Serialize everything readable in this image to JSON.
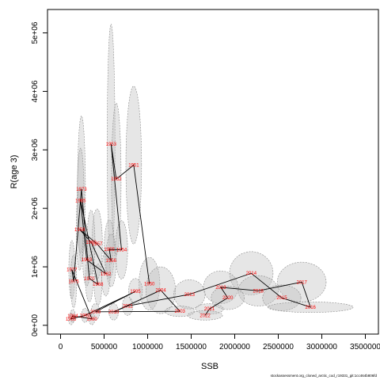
{
  "chart_data": {
    "type": "scatter",
    "title": "",
    "xlabel": "SSB",
    "ylabel": "R(age 3)",
    "xlim": [
      -150000,
      3650000
    ],
    "ylim": [
      -150000,
      5400000
    ],
    "x_ticks": [
      0,
      500000,
      1000000,
      1500000,
      2000000,
      2500000,
      3000000,
      3500000
    ],
    "x_tick_labels": [
      "0",
      "500000",
      "1000000",
      "1500000",
      "2000000",
      "2500000",
      "3000000",
      "3500000"
    ],
    "y_ticks": [
      0,
      1000000,
      2000000,
      3000000,
      4000000,
      5000000
    ],
    "y_tick_labels": [
      "0e+00",
      "1e+06",
      "2e+06",
      "3e+06",
      "4e+06",
      "5e+06"
    ],
    "grid": false,
    "legend": "none",
    "colors": {
      "label": "#ff0000",
      "ellipse_fill": "#bdbdbd",
      "ellipse_stroke": "#8c8c8c",
      "line": "#000000"
    },
    "points": [
      {
        "year": "1953",
        "x": 580000,
        "y": 3100000,
        "rx": 45000,
        "ry": 2050000
      },
      {
        "year": "1951",
        "x": 840000,
        "y": 2740000,
        "rx": 90000,
        "ry": 1350000
      },
      {
        "year": "1952",
        "x": 640000,
        "y": 2500000,
        "rx": 55000,
        "ry": 1300000
      },
      {
        "year": "1973",
        "x": 240000,
        "y": 2330000,
        "rx": 45000,
        "ry": 1250000
      },
      {
        "year": "1965",
        "x": 230000,
        "y": 2130000,
        "rx": 40000,
        "ry": 900000
      },
      {
        "year": "1958",
        "x": 220000,
        "y": 1640000,
        "rx": 40000,
        "ry": 700000
      },
      {
        "year": "1957",
        "x": 420000,
        "y": 1390000,
        "rx": 60000,
        "ry": 600000
      },
      {
        "year": "1955",
        "x": 560000,
        "y": 1300000,
        "rx": 60000,
        "ry": 500000
      },
      {
        "year": "1954",
        "x": 700000,
        "y": 1290000,
        "rx": 70000,
        "ry": 500000
      },
      {
        "year": "1956",
        "x": 580000,
        "y": 1110000,
        "rx": 60000,
        "ry": 450000
      },
      {
        "year": "1950",
        "x": 1020000,
        "y": 710000,
        "rx": 120000,
        "ry": 450000
      },
      {
        "year": "2004",
        "x": 1150000,
        "y": 600000,
        "rx": 170000,
        "ry": 400000
      },
      {
        "year": "2014",
        "x": 2190000,
        "y": 890000,
        "rx": 250000,
        "ry": 370000
      },
      {
        "year": "2017",
        "x": 2770000,
        "y": 740000,
        "rx": 280000,
        "ry": 340000
      },
      {
        "year": "2019",
        "x": 1840000,
        "y": 650000,
        "rx": 200000,
        "ry": 280000
      },
      {
        "year": "2018",
        "x": 2270000,
        "y": 590000,
        "rx": 230000,
        "ry": 260000
      },
      {
        "year": "2015",
        "x": 2540000,
        "y": 470000,
        "rx": 220000,
        "ry": 220000
      },
      {
        "year": "2013",
        "x": 1480000,
        "y": 530000,
        "rx": 180000,
        "ry": 250000
      },
      {
        "year": "2020",
        "x": 1920000,
        "y": 470000,
        "rx": 190000,
        "ry": 200000
      },
      {
        "year": "2016",
        "x": 2870000,
        "y": 310000,
        "rx": 490000,
        "ry": 90000
      },
      {
        "year": "2021",
        "x": 1710000,
        "y": 280000,
        "rx": 160000,
        "ry": 90000
      },
      {
        "year": "2003",
        "x": 1370000,
        "y": 240000,
        "rx": 170000,
        "ry": 90000
      },
      {
        "year": "2022",
        "x": 1660000,
        "y": 170000,
        "rx": 200000,
        "ry": 80000
      },
      {
        "year": "1995",
        "x": 860000,
        "y": 580000,
        "rx": 80000,
        "ry": 220000
      },
      {
        "year": "2011",
        "x": 770000,
        "y": 330000,
        "rx": 60000,
        "ry": 160000
      },
      {
        "year": "2010",
        "x": 610000,
        "y": 230000,
        "rx": 55000,
        "ry": 140000
      },
      {
        "year": "2000",
        "x": 400000,
        "y": 230000,
        "rx": 50000,
        "ry": 140000
      },
      {
        "year": "1990",
        "x": 280000,
        "y": 170000,
        "rx": 40000,
        "ry": 120000
      },
      {
        "year": "1980",
        "x": 360000,
        "y": 110000,
        "rx": 35000,
        "ry": 100000
      },
      {
        "year": "1984",
        "x": 140000,
        "y": 160000,
        "rx": 30000,
        "ry": 110000
      },
      {
        "year": "1985",
        "x": 120000,
        "y": 110000,
        "rx": 30000,
        "ry": 100000
      },
      {
        "year": "1977",
        "x": 130000,
        "y": 950000,
        "rx": 35000,
        "ry": 500000
      },
      {
        "year": "1975",
        "x": 150000,
        "y": 750000,
        "rx": 35000,
        "ry": 450000
      },
      {
        "year": "1970",
        "x": 330000,
        "y": 800000,
        "rx": 45000,
        "ry": 400000
      },
      {
        "year": "1968",
        "x": 430000,
        "y": 700000,
        "rx": 45000,
        "ry": 350000
      },
      {
        "year": "1962",
        "x": 520000,
        "y": 880000,
        "rx": 50000,
        "ry": 380000
      },
      {
        "year": "1963",
        "x": 300000,
        "y": 1120000,
        "rx": 45000,
        "ry": 450000
      },
      {
        "year": "1960",
        "x": 350000,
        "y": 1420000,
        "rx": 45000,
        "ry": 550000
      }
    ],
    "path_order": [
      "1950",
      "1951",
      "1952",
      "1953",
      "1954",
      "1955",
      "1956",
      "1957",
      "1958",
      "1960",
      "1962",
      "1963",
      "1965",
      "1968",
      "1970",
      "1973",
      "1975",
      "1977",
      "1980",
      "1984",
      "1985",
      "1990",
      "1995",
      "2000",
      "2003",
      "2004",
      "2010",
      "2011",
      "2013",
      "2014",
      "2015",
      "2016",
      "2017",
      "2018",
      "2019",
      "2020",
      "2021",
      "2022"
    ]
  },
  "footnote": "stockassessment.org_cloned_arctic_cod_r19331_git:1cc464b806fd"
}
